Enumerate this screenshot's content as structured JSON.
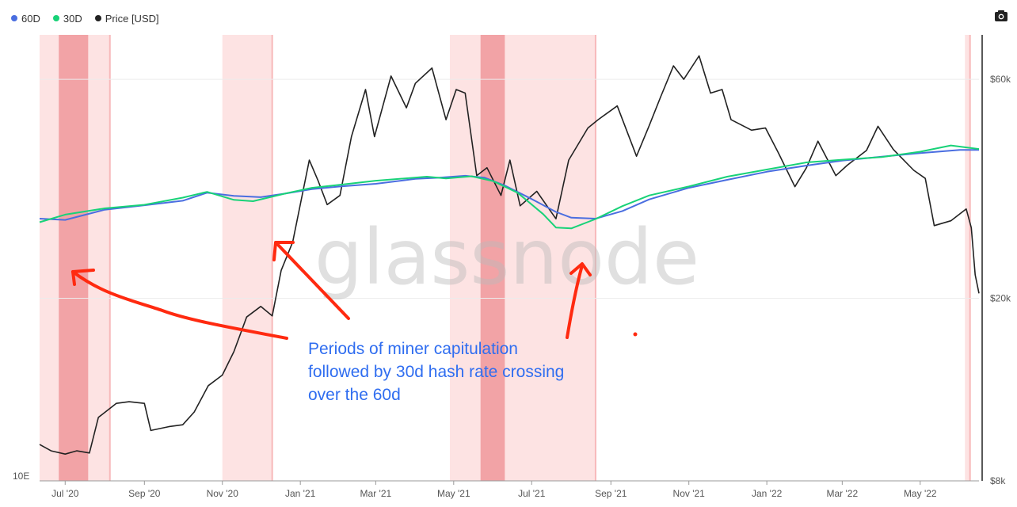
{
  "legend": {
    "items": [
      {
        "label": "60D",
        "color": "#4a6ee0"
      },
      {
        "label": "30D",
        "color": "#18d278"
      },
      {
        "label": "Price [USD]",
        "color": "#222222"
      }
    ]
  },
  "toolbar": {
    "camera_icon": "camera-icon"
  },
  "watermark": "glassnode",
  "left_axis_label": "10E",
  "annotation": {
    "lines": [
      "Periods of miner capitulation",
      "followed by 30d hash rate crossing",
      "over the 60d"
    ],
    "color": "#2f6df0",
    "arrow_color": "#ff2a10"
  },
  "chart_data": {
    "type": "line",
    "title": "",
    "x_range": [
      "2020-06-11",
      "2022-06-16"
    ],
    "x_ticks": [
      "Jul '20",
      "Sep '20",
      "Nov '20",
      "Jan '21",
      "Mar '21",
      "May '21",
      "Jul '21",
      "Sep '21",
      "Nov '21",
      "Jan '22",
      "Mar '22",
      "May '22"
    ],
    "y_right": {
      "scale": "log",
      "range": [
        8000,
        75000
      ],
      "ticks": [
        "$60k",
        "$20k",
        "$8k"
      ],
      "tick_values": [
        60000,
        20000,
        8000
      ]
    },
    "grid": true,
    "legend_position": "top-left",
    "shaded_periods": [
      {
        "start": "2020-06-11",
        "end": "2020-08-05",
        "intensity": "light"
      },
      {
        "start": "2020-06-26",
        "end": "2020-07-19",
        "intensity": "dark"
      },
      {
        "start": "2020-11-01",
        "end": "2020-12-10",
        "intensity": "light"
      },
      {
        "start": "2021-04-28",
        "end": "2021-08-20",
        "intensity": "light"
      },
      {
        "start": "2021-05-22",
        "end": "2021-06-10",
        "intensity": "dark"
      },
      {
        "start": "2022-06-05",
        "end": "2022-06-09",
        "intensity": "light"
      }
    ],
    "series": [
      {
        "name": "Price [USD]",
        "color": "#222222",
        "axis": "right",
        "points": [
          [
            "2020-06-11",
            9600
          ],
          [
            "2020-06-20",
            9300
          ],
          [
            "2020-07-01",
            9150
          ],
          [
            "2020-07-10",
            9300
          ],
          [
            "2020-07-20",
            9200
          ],
          [
            "2020-07-27",
            11000
          ],
          [
            "2020-08-10",
            11800
          ],
          [
            "2020-08-20",
            11900
          ],
          [
            "2020-09-01",
            11800
          ],
          [
            "2020-09-06",
            10300
          ],
          [
            "2020-09-20",
            10500
          ],
          [
            "2020-10-01",
            10600
          ],
          [
            "2020-10-10",
            11300
          ],
          [
            "2020-10-21",
            12900
          ],
          [
            "2020-11-01",
            13600
          ],
          [
            "2020-11-10",
            15300
          ],
          [
            "2020-11-20",
            18200
          ],
          [
            "2020-12-01",
            19200
          ],
          [
            "2020-12-10",
            18300
          ],
          [
            "2020-12-17",
            23000
          ],
          [
            "2020-12-26",
            26500
          ],
          [
            "2021-01-08",
            40000
          ],
          [
            "2021-01-15",
            36000
          ],
          [
            "2021-01-22",
            32000
          ],
          [
            "2021-02-01",
            33500
          ],
          [
            "2021-02-10",
            45000
          ],
          [
            "2021-02-21",
            57000
          ],
          [
            "2021-02-28",
            45000
          ],
          [
            "2021-03-13",
            61000
          ],
          [
            "2021-03-25",
            52000
          ],
          [
            "2021-04-01",
            58800
          ],
          [
            "2021-04-14",
            63500
          ],
          [
            "2021-04-25",
            49000
          ],
          [
            "2021-05-03",
            57000
          ],
          [
            "2021-05-10",
            56000
          ],
          [
            "2021-05-19",
            37000
          ],
          [
            "2021-05-27",
            38500
          ],
          [
            "2021-06-07",
            33500
          ],
          [
            "2021-06-14",
            40000
          ],
          [
            "2021-06-22",
            31800
          ],
          [
            "2021-07-05",
            34200
          ],
          [
            "2021-07-20",
            29800
          ],
          [
            "2021-07-30",
            40000
          ],
          [
            "2021-08-14",
            47000
          ],
          [
            "2021-08-22",
            49000
          ],
          [
            "2021-09-06",
            52500
          ],
          [
            "2021-09-21",
            40800
          ],
          [
            "2021-10-01",
            47600
          ],
          [
            "2021-10-10",
            55000
          ],
          [
            "2021-10-20",
            64200
          ],
          [
            "2021-10-28",
            60000
          ],
          [
            "2021-11-09",
            67500
          ],
          [
            "2021-11-18",
            56000
          ],
          [
            "2021-11-27",
            57000
          ],
          [
            "2021-12-04",
            49000
          ],
          [
            "2021-12-20",
            46500
          ],
          [
            "2021-12-31",
            47000
          ],
          [
            "2022-01-10",
            41500
          ],
          [
            "2022-01-23",
            35000
          ],
          [
            "2022-02-01",
            38500
          ],
          [
            "2022-02-10",
            44000
          ],
          [
            "2022-02-24",
            37000
          ],
          [
            "2022-03-05",
            39000
          ],
          [
            "2022-03-20",
            42000
          ],
          [
            "2022-03-29",
            47400
          ],
          [
            "2022-04-10",
            42200
          ],
          [
            "2022-04-26",
            38000
          ],
          [
            "2022-05-05",
            36500
          ],
          [
            "2022-05-12",
            28800
          ],
          [
            "2022-05-25",
            29500
          ],
          [
            "2022-06-06",
            31300
          ],
          [
            "2022-06-10",
            28500
          ],
          [
            "2022-06-13",
            22500
          ],
          [
            "2022-06-16",
            20500
          ]
        ]
      },
      {
        "name": "60D",
        "color": "#4a6ee0",
        "axis": "left",
        "points": [
          [
            "2020-06-11",
            0.588
          ],
          [
            "2020-07-01",
            0.585
          ],
          [
            "2020-08-01",
            0.608
          ],
          [
            "2020-09-01",
            0.618
          ],
          [
            "2020-10-01",
            0.628
          ],
          [
            "2020-10-20",
            0.646
          ],
          [
            "2020-11-10",
            0.639
          ],
          [
            "2020-12-01",
            0.636
          ],
          [
            "2020-12-20",
            0.644
          ],
          [
            "2021-01-10",
            0.654
          ],
          [
            "2021-02-01",
            0.66
          ],
          [
            "2021-03-01",
            0.666
          ],
          [
            "2021-04-01",
            0.677
          ],
          [
            "2021-04-20",
            0.68
          ],
          [
            "2021-05-10",
            0.684
          ],
          [
            "2021-05-25",
            0.68
          ],
          [
            "2021-06-10",
            0.662
          ],
          [
            "2021-07-01",
            0.632
          ],
          [
            "2021-07-20",
            0.603
          ],
          [
            "2021-08-01",
            0.59
          ],
          [
            "2021-08-20",
            0.588
          ],
          [
            "2021-09-10",
            0.605
          ],
          [
            "2021-10-01",
            0.631
          ],
          [
            "2021-11-01",
            0.657
          ],
          [
            "2021-12-01",
            0.675
          ],
          [
            "2022-01-01",
            0.693
          ],
          [
            "2022-02-01",
            0.707
          ],
          [
            "2022-03-01",
            0.718
          ],
          [
            "2022-04-01",
            0.727
          ],
          [
            "2022-05-01",
            0.735
          ],
          [
            "2022-06-01",
            0.742
          ],
          [
            "2022-06-16",
            0.742
          ]
        ]
      },
      {
        "name": "30D",
        "color": "#18d278",
        "axis": "left",
        "points": [
          [
            "2020-06-11",
            0.58
          ],
          [
            "2020-07-01",
            0.597
          ],
          [
            "2020-08-01",
            0.611
          ],
          [
            "2020-09-01",
            0.619
          ],
          [
            "2020-10-01",
            0.635
          ],
          [
            "2020-10-20",
            0.648
          ],
          [
            "2020-11-10",
            0.63
          ],
          [
            "2020-11-25",
            0.627
          ],
          [
            "2020-12-20",
            0.644
          ],
          [
            "2021-01-10",
            0.657
          ],
          [
            "2021-02-01",
            0.664
          ],
          [
            "2021-03-01",
            0.673
          ],
          [
            "2021-04-10",
            0.682
          ],
          [
            "2021-04-25",
            0.678
          ],
          [
            "2021-05-15",
            0.683
          ],
          [
            "2021-06-01",
            0.672
          ],
          [
            "2021-06-20",
            0.646
          ],
          [
            "2021-07-10",
            0.598
          ],
          [
            "2021-07-20",
            0.568
          ],
          [
            "2021-08-01",
            0.566
          ],
          [
            "2021-08-20",
            0.587
          ],
          [
            "2021-09-10",
            0.616
          ],
          [
            "2021-10-01",
            0.64
          ],
          [
            "2021-11-01",
            0.66
          ],
          [
            "2021-12-01",
            0.682
          ],
          [
            "2022-01-01",
            0.698
          ],
          [
            "2022-02-01",
            0.714
          ],
          [
            "2022-03-01",
            0.72
          ],
          [
            "2022-04-01",
            0.726
          ],
          [
            "2022-05-01",
            0.738
          ],
          [
            "2022-05-25",
            0.752
          ],
          [
            "2022-06-16",
            0.744
          ]
        ]
      }
    ]
  }
}
